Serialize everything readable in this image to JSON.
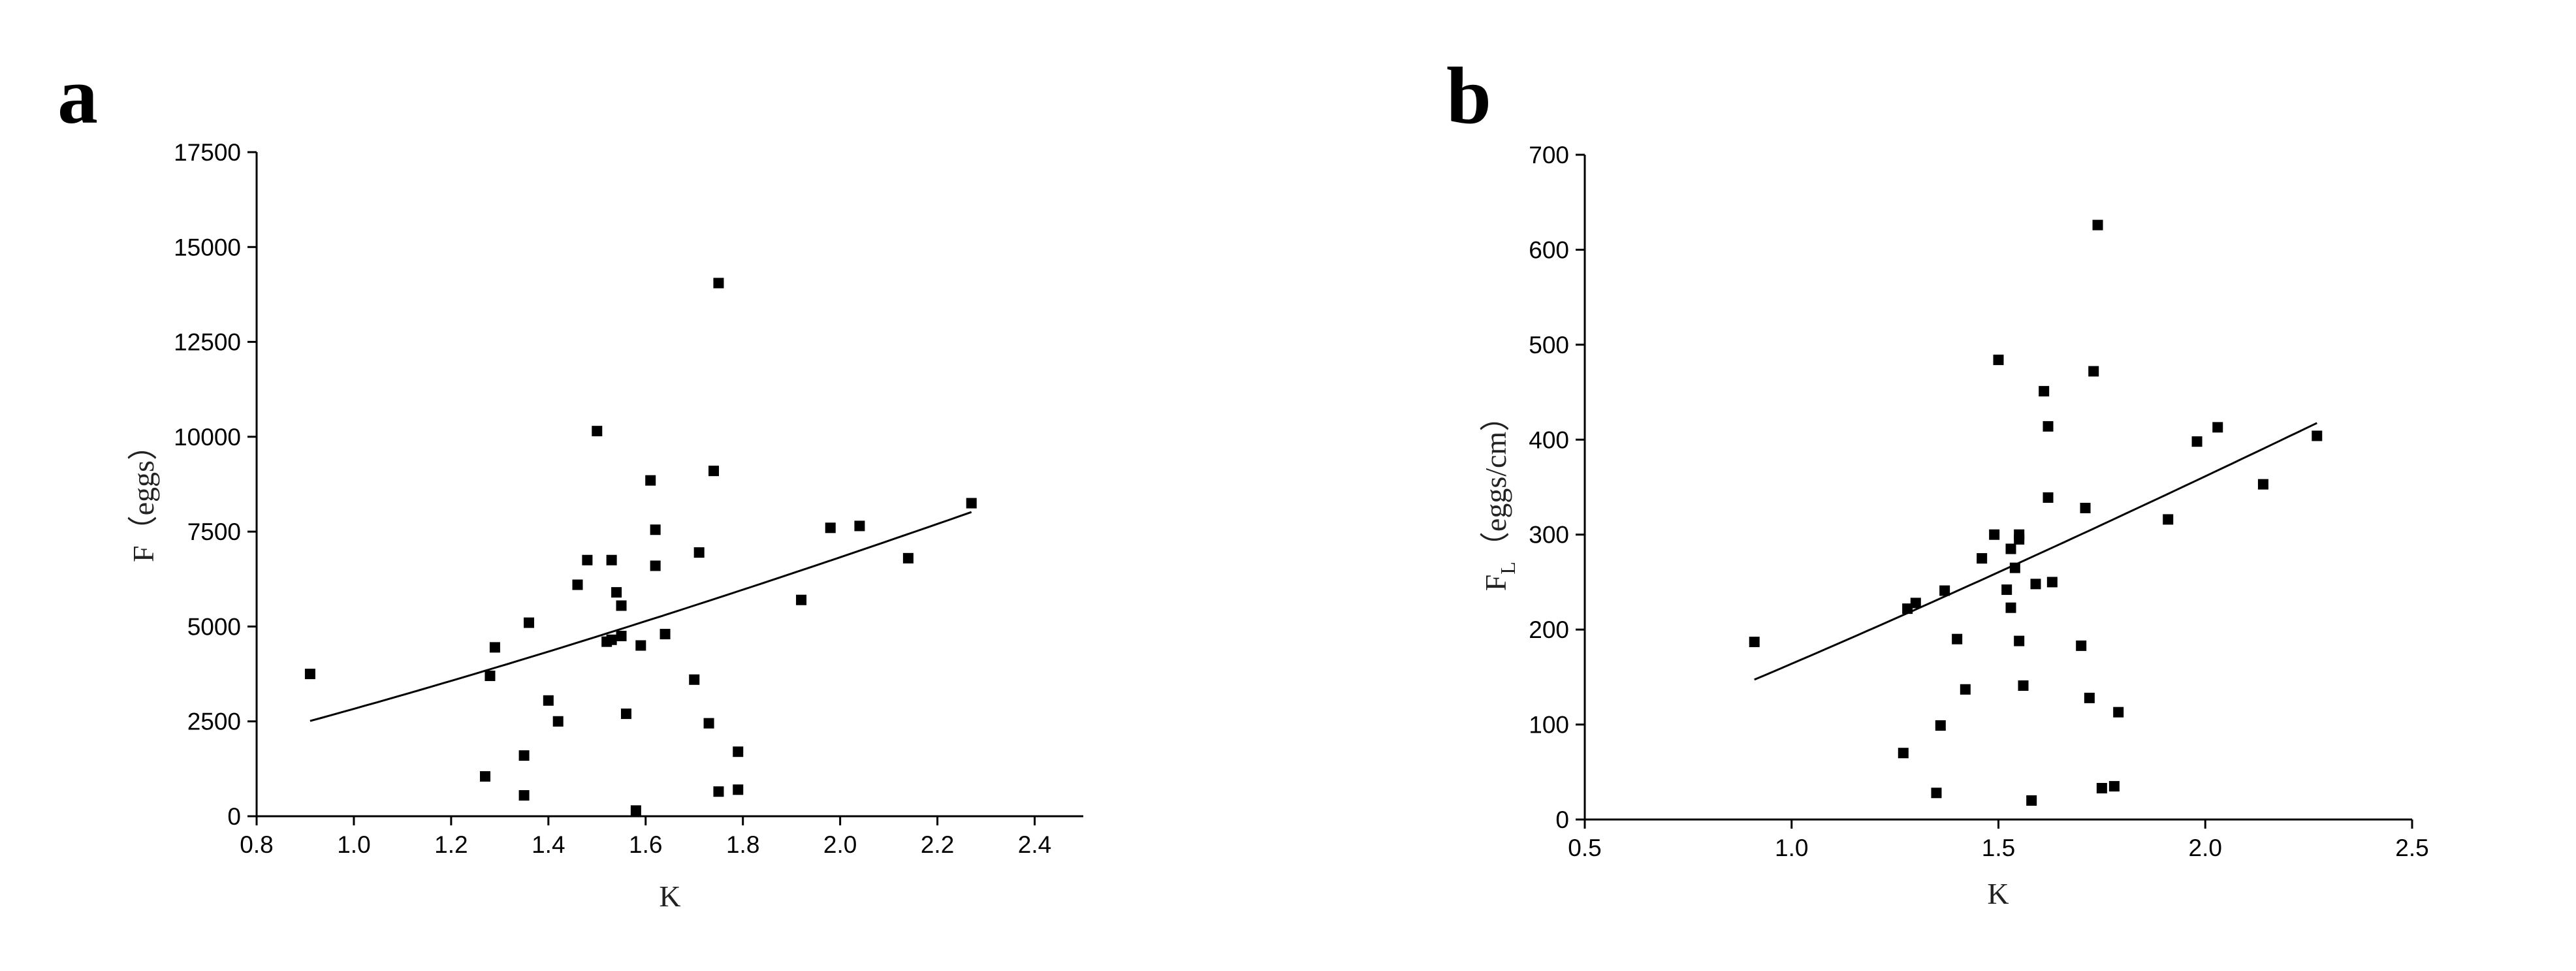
{
  "chart_data": [
    {
      "type": "scatter",
      "panel_label": "a",
      "xlabel": "K",
      "ylabel": "F（eggs）",
      "xlim": [
        0.8,
        2.5
      ],
      "ylim": [
        0,
        17500
      ],
      "x_ticks": [
        "0.8",
        "1.0",
        "1.2",
        "1.4",
        "1.6",
        "1.8",
        "2.0",
        "2.2",
        "2.4"
      ],
      "y_ticks": [
        "0",
        "2500",
        "5000",
        "7500",
        "10000",
        "12500",
        "15000",
        "17500"
      ],
      "points": [
        [
          0.91,
          3750
        ],
        [
          1.27,
          1050
        ],
        [
          1.28,
          3700
        ],
        [
          1.29,
          4450
        ],
        [
          1.35,
          1600
        ],
        [
          1.35,
          550
        ],
        [
          1.36,
          5100
        ],
        [
          1.4,
          3050
        ],
        [
          1.42,
          2500
        ],
        [
          1.46,
          6100
        ],
        [
          1.48,
          6750
        ],
        [
          1.5,
          10150
        ],
        [
          1.52,
          4600
        ],
        [
          1.53,
          6750
        ],
        [
          1.53,
          4650
        ],
        [
          1.54,
          5900
        ],
        [
          1.55,
          4750
        ],
        [
          1.55,
          5550
        ],
        [
          1.56,
          2700
        ],
        [
          1.58,
          150
        ],
        [
          1.59,
          4500
        ],
        [
          1.61,
          8850
        ],
        [
          1.62,
          6600
        ],
        [
          1.62,
          7550
        ],
        [
          1.64,
          4800
        ],
        [
          1.7,
          3600
        ],
        [
          1.71,
          6950
        ],
        [
          1.73,
          2450
        ],
        [
          1.74,
          9100
        ],
        [
          1.75,
          650
        ],
        [
          1.75,
          14050
        ],
        [
          1.79,
          1700
        ],
        [
          1.79,
          700
        ],
        [
          1.92,
          5700
        ],
        [
          1.98,
          7600
        ],
        [
          2.04,
          7650
        ],
        [
          2.14,
          6800
        ],
        [
          2.27,
          8250
        ]
      ],
      "fit_curve": {
        "type": "power",
        "a": 2830,
        "b": 1.27,
        "x_range": [
          0.91,
          2.27
        ]
      }
    },
    {
      "type": "scatter",
      "panel_label": "b",
      "xlabel": "K",
      "ylabel_main": "F",
      "ylabel_sub": "L",
      "ylabel_rest": "（eggs/cm）",
      "xlim": [
        0.5,
        2.5
      ],
      "ylim": [
        0,
        700
      ],
      "x_ticks": [
        "0.5",
        "1.0",
        "1.5",
        "2.0",
        "2.5"
      ],
      "y_ticks": [
        "0",
        "100",
        "200",
        "300",
        "400",
        "500",
        "600",
        "700"
      ],
      "points": [
        [
          0.91,
          187
        ],
        [
          1.27,
          70
        ],
        [
          1.28,
          222
        ],
        [
          1.3,
          228
        ],
        [
          1.35,
          28
        ],
        [
          1.36,
          99
        ],
        [
          1.37,
          241
        ],
        [
          1.4,
          190
        ],
        [
          1.42,
          137
        ],
        [
          1.46,
          275
        ],
        [
          1.49,
          300
        ],
        [
          1.5,
          484
        ],
        [
          1.52,
          242
        ],
        [
          1.53,
          285
        ],
        [
          1.53,
          223
        ],
        [
          1.54,
          265
        ],
        [
          1.55,
          295
        ],
        [
          1.55,
          300
        ],
        [
          1.55,
          188
        ],
        [
          1.56,
          141
        ],
        [
          1.58,
          20
        ],
        [
          1.59,
          248
        ],
        [
          1.61,
          451
        ],
        [
          1.62,
          414
        ],
        [
          1.62,
          339
        ],
        [
          1.63,
          250
        ],
        [
          1.7,
          183
        ],
        [
          1.71,
          328
        ],
        [
          1.72,
          128
        ],
        [
          1.73,
          472
        ],
        [
          1.74,
          626
        ],
        [
          1.75,
          33
        ],
        [
          1.78,
          35
        ],
        [
          1.79,
          113
        ],
        [
          1.91,
          316
        ],
        [
          1.98,
          398
        ],
        [
          2.03,
          413
        ],
        [
          2.14,
          353
        ],
        [
          2.27,
          404
        ]
      ],
      "fit_curve": {
        "type": "power",
        "a": 164,
        "b": 1.14,
        "x_range": [
          0.91,
          2.27
        ]
      }
    }
  ]
}
